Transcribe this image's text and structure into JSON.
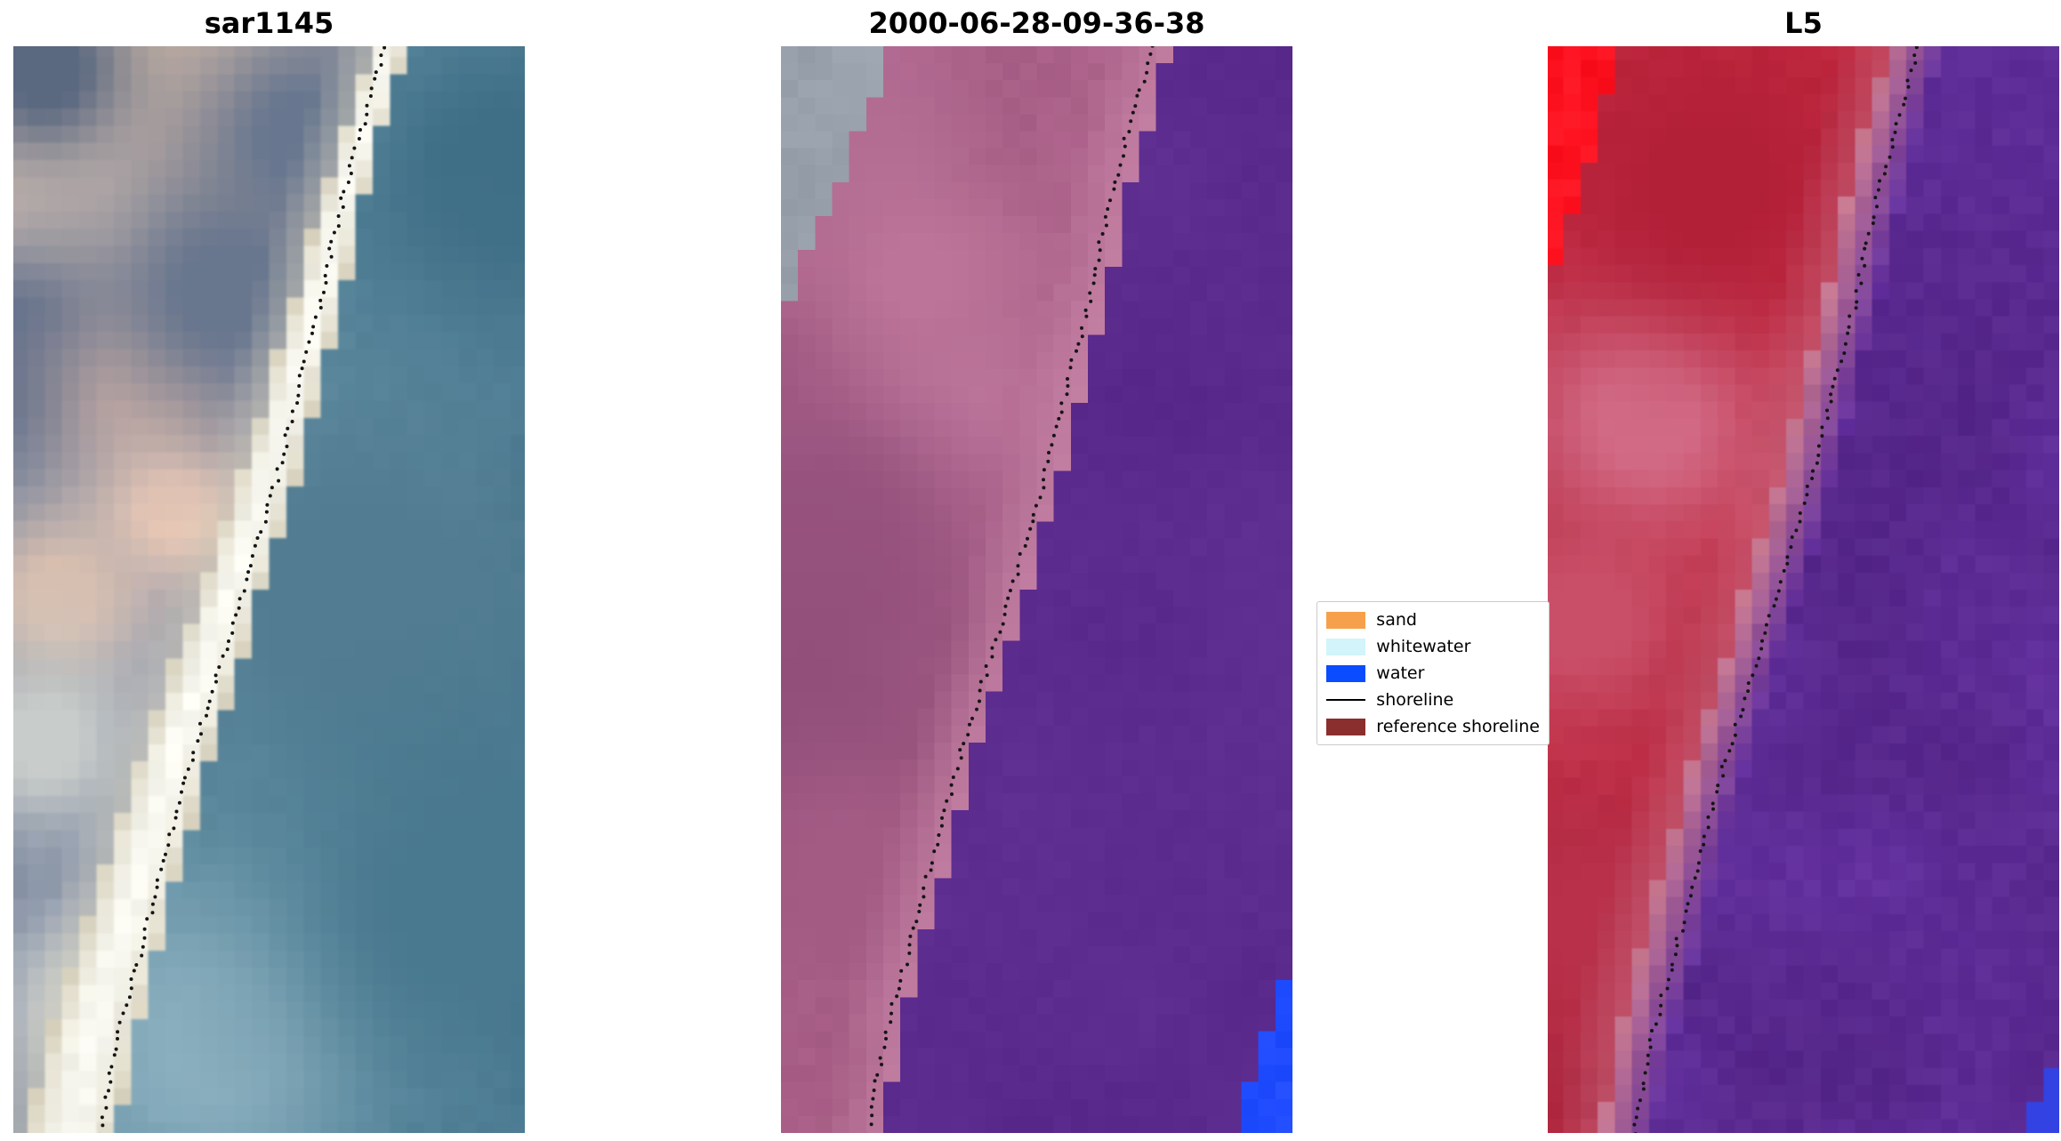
{
  "figure": {
    "background": "#ffffff",
    "panels": [
      {
        "id": "sar1145",
        "title": "sar1145",
        "kind": "rgb",
        "colors": {
          "water_near": "#7AA6B8",
          "water_far": "#3F6F88",
          "stripe_core": "#FAFAF3",
          "stripe_edge": "#D9D3BF",
          "land_base": "#7D8AA2",
          "land_blobs": [
            [
              0.25,
              0.06,
              0.1,
              "#DCC0A8"
            ],
            [
              0.1,
              0.15,
              0.09,
              "#E8CFBC"
            ],
            [
              0.45,
              0.1,
              0.07,
              "#C9AFA2"
            ],
            [
              0.05,
              0.02,
              0.06,
              "#5A6880"
            ],
            [
              0.02,
              0.28,
              0.08,
              "#5E6E8A"
            ],
            [
              0.55,
              0.08,
              0.07,
              "#68778F"
            ],
            [
              0.25,
              0.31,
              0.06,
              "#C9ACA4"
            ],
            [
              0.3,
              0.42,
              0.05,
              "#E9C8B6"
            ],
            [
              0.08,
              0.5,
              0.06,
              "#D7BEAF"
            ],
            [
              0.05,
              0.63,
              0.06,
              "#C8CCCA"
            ],
            [
              0.4,
              0.22,
              0.08,
              "#68768E"
            ],
            [
              0.12,
              0.87,
              0.06,
              "#BFC4C6"
            ]
          ],
          "water_blobs": [
            [
              0.95,
              0.12,
              0.12,
              "#3F6F87"
            ],
            [
              0.65,
              0.5,
              0.15,
              "#527C91"
            ],
            [
              0.4,
              0.9,
              0.1,
              "#8FB3C2"
            ],
            [
              0.88,
              0.78,
              0.13,
              "#49798F"
            ]
          ]
        }
      },
      {
        "id": "classified",
        "title": "2000-06-28-09-36-38",
        "kind": "classified",
        "colors": {
          "water": "#5B2B8E",
          "land_base": "#A85E86",
          "land_band": "#C886A8",
          "land_blobs": [
            [
              0.3,
              0.33,
              0.07,
              "#C77FA3"
            ],
            [
              0.13,
              0.09,
              0.09,
              "#B26C92"
            ],
            [
              0.05,
              0.45,
              0.12,
              "#97537E"
            ],
            [
              0.25,
              0.2,
              0.06,
              "#BC7598"
            ],
            [
              0.03,
              0.62,
              0.09,
              "#8F4E79"
            ],
            [
              0.12,
              0.75,
              0.08,
              "#A35B84"
            ]
          ],
          "gray_patch": "#98A0AB",
          "gray_extent": [
            0.2,
            0.22
          ],
          "blue_patch": "#1F4BFF",
          "blue_extent": [
            0.13,
            0.18
          ]
        }
      },
      {
        "id": "L5",
        "title": "L5",
        "kind": "falsecolor",
        "colors": {
          "water": "#63309E",
          "water_dark": "#552689",
          "band_pink": "#C9798F",
          "land_base": "#C32940",
          "land_dark": "#A02038",
          "land_blobs": [
            [
              0.18,
              0.33,
              0.08,
              "#D4708C"
            ],
            [
              0.06,
              0.52,
              0.07,
              "#C94F68"
            ],
            [
              0.3,
              0.12,
              0.1,
              "#B22038"
            ],
            [
              0.1,
              0.8,
              0.09,
              "#B8304A"
            ]
          ],
          "hot_patch": "#FF1220",
          "hot_extent": [
            0.13,
            0.2
          ],
          "blue_patch": "#3848E8",
          "blue_extent": [
            0.09,
            0.09
          ]
        }
      }
    ],
    "shoreline": [
      [
        0.725,
        0.0
      ],
      [
        0.69,
        0.06
      ],
      [
        0.655,
        0.12
      ],
      [
        0.625,
        0.18
      ],
      [
        0.6,
        0.24
      ],
      [
        0.565,
        0.3
      ],
      [
        0.535,
        0.36
      ],
      [
        0.508,
        0.41
      ],
      [
        0.47,
        0.47
      ],
      [
        0.438,
        0.52
      ],
      [
        0.405,
        0.57
      ],
      [
        0.372,
        0.62
      ],
      [
        0.34,
        0.67
      ],
      [
        0.305,
        0.73
      ],
      [
        0.272,
        0.79
      ],
      [
        0.24,
        0.85
      ],
      [
        0.21,
        0.9
      ],
      [
        0.188,
        0.95
      ],
      [
        0.17,
        1.0
      ]
    ],
    "legend": {
      "items": [
        {
          "label": "sand",
          "kind": "patch",
          "color": "#F7A04B"
        },
        {
          "label": "whitewater",
          "kind": "patch",
          "color": "#D2F4FA"
        },
        {
          "label": "water",
          "kind": "patch",
          "color": "#0A4CFF"
        },
        {
          "label": "shoreline",
          "kind": "line",
          "color": "#000000"
        },
        {
          "label": "reference shoreline",
          "kind": "patch",
          "color": "#8B2E2E"
        }
      ]
    }
  },
  "chart_data": {
    "type": "image",
    "subtype": "satellite-image-panel-comparison",
    "panels": [
      {
        "title": "sar1145",
        "content": "RGB coastal satellite image: slate-blue land with beige cloud/sand patches on left, bright white beach/whitewater stripe on diagonal, teal ocean on right"
      },
      {
        "title": "2000-06-28-09-36-38",
        "content": "classified image: mauve-pink land on left with lighter pink band at shore, deep purple water on right, gray patch in top-left corner, bright blue patch in bottom-right corner"
      },
      {
        "title": "L5",
        "content": "false-color Landsat 5 image: red land on left with bright red patch in top-left corner, purple water on right, small blue patch in bottom-right corner"
      }
    ],
    "overlay": "dotted black shoreline line running from upper-right to lower-left in every panel",
    "legend_entries": [
      "sand",
      "whitewater",
      "water",
      "shoreline",
      "reference shoreline"
    ],
    "legend_position": "center, between second and third panel",
    "axes": "off"
  }
}
